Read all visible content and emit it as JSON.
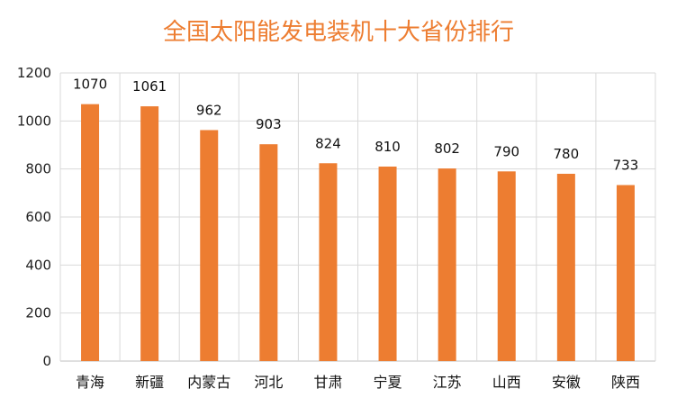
{
  "colors": {
    "bar": "#ED7D31",
    "title": "#ED7D31",
    "grid": "#D9D9D9",
    "axis": "#BFBFBF"
  },
  "chart_data": {
    "type": "bar",
    "title": "全国太阳能发电装机十大省份排行",
    "xlabel": "",
    "ylabel": "",
    "categories": [
      "青海",
      "新疆",
      "内蒙古",
      "河北",
      "甘肃",
      "宁夏",
      "江苏",
      "山西",
      "安徽",
      "陕西"
    ],
    "values": [
      1070,
      1061,
      962,
      903,
      824,
      810,
      802,
      790,
      780,
      733
    ],
    "y_ticks": [
      "0",
      "200",
      "400",
      "600",
      "800",
      "1000",
      "1200"
    ],
    "ylim": [
      0,
      1200
    ],
    "grid": true,
    "legend": "none",
    "data_labels": true
  }
}
